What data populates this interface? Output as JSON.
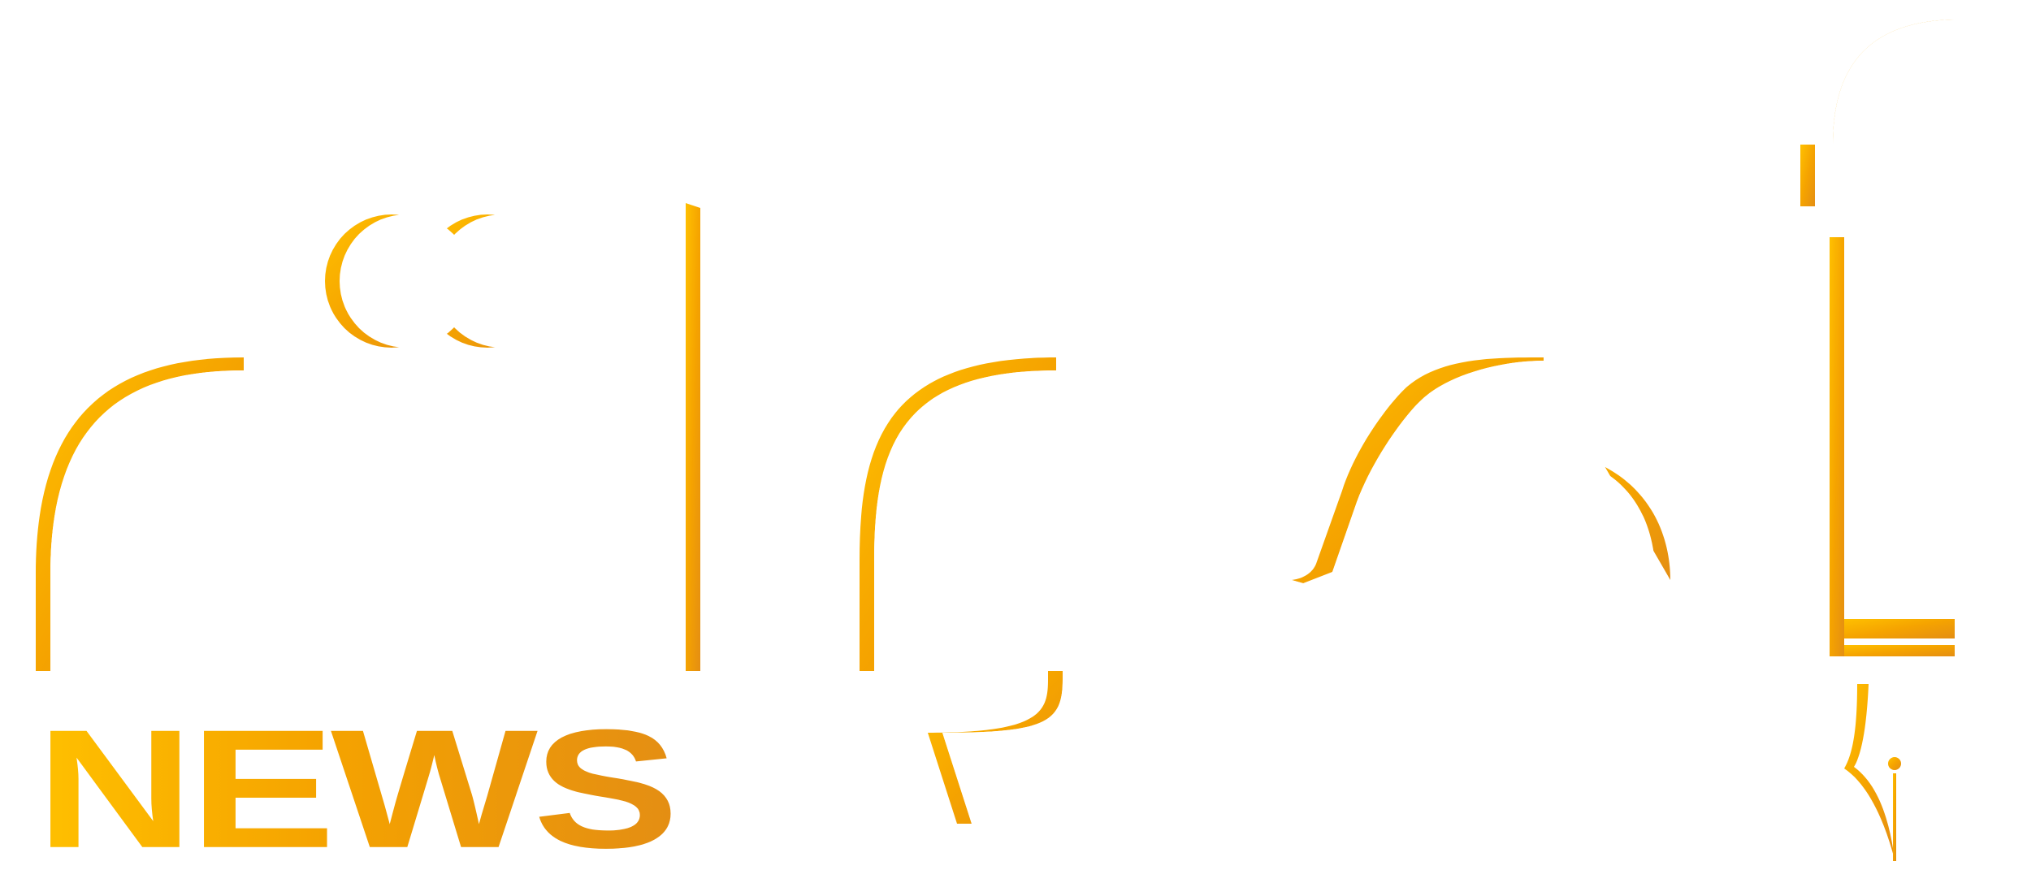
{
  "logo": {
    "brand_word": "",
    "sub_word": "NEWS",
    "colors": {
      "background": "#FFFFFF",
      "gold_start": "#FFC000",
      "gold_mid": "#F5A300",
      "gold_end": "#E48E13",
      "letter_fill": "#FFFFFF"
    }
  }
}
